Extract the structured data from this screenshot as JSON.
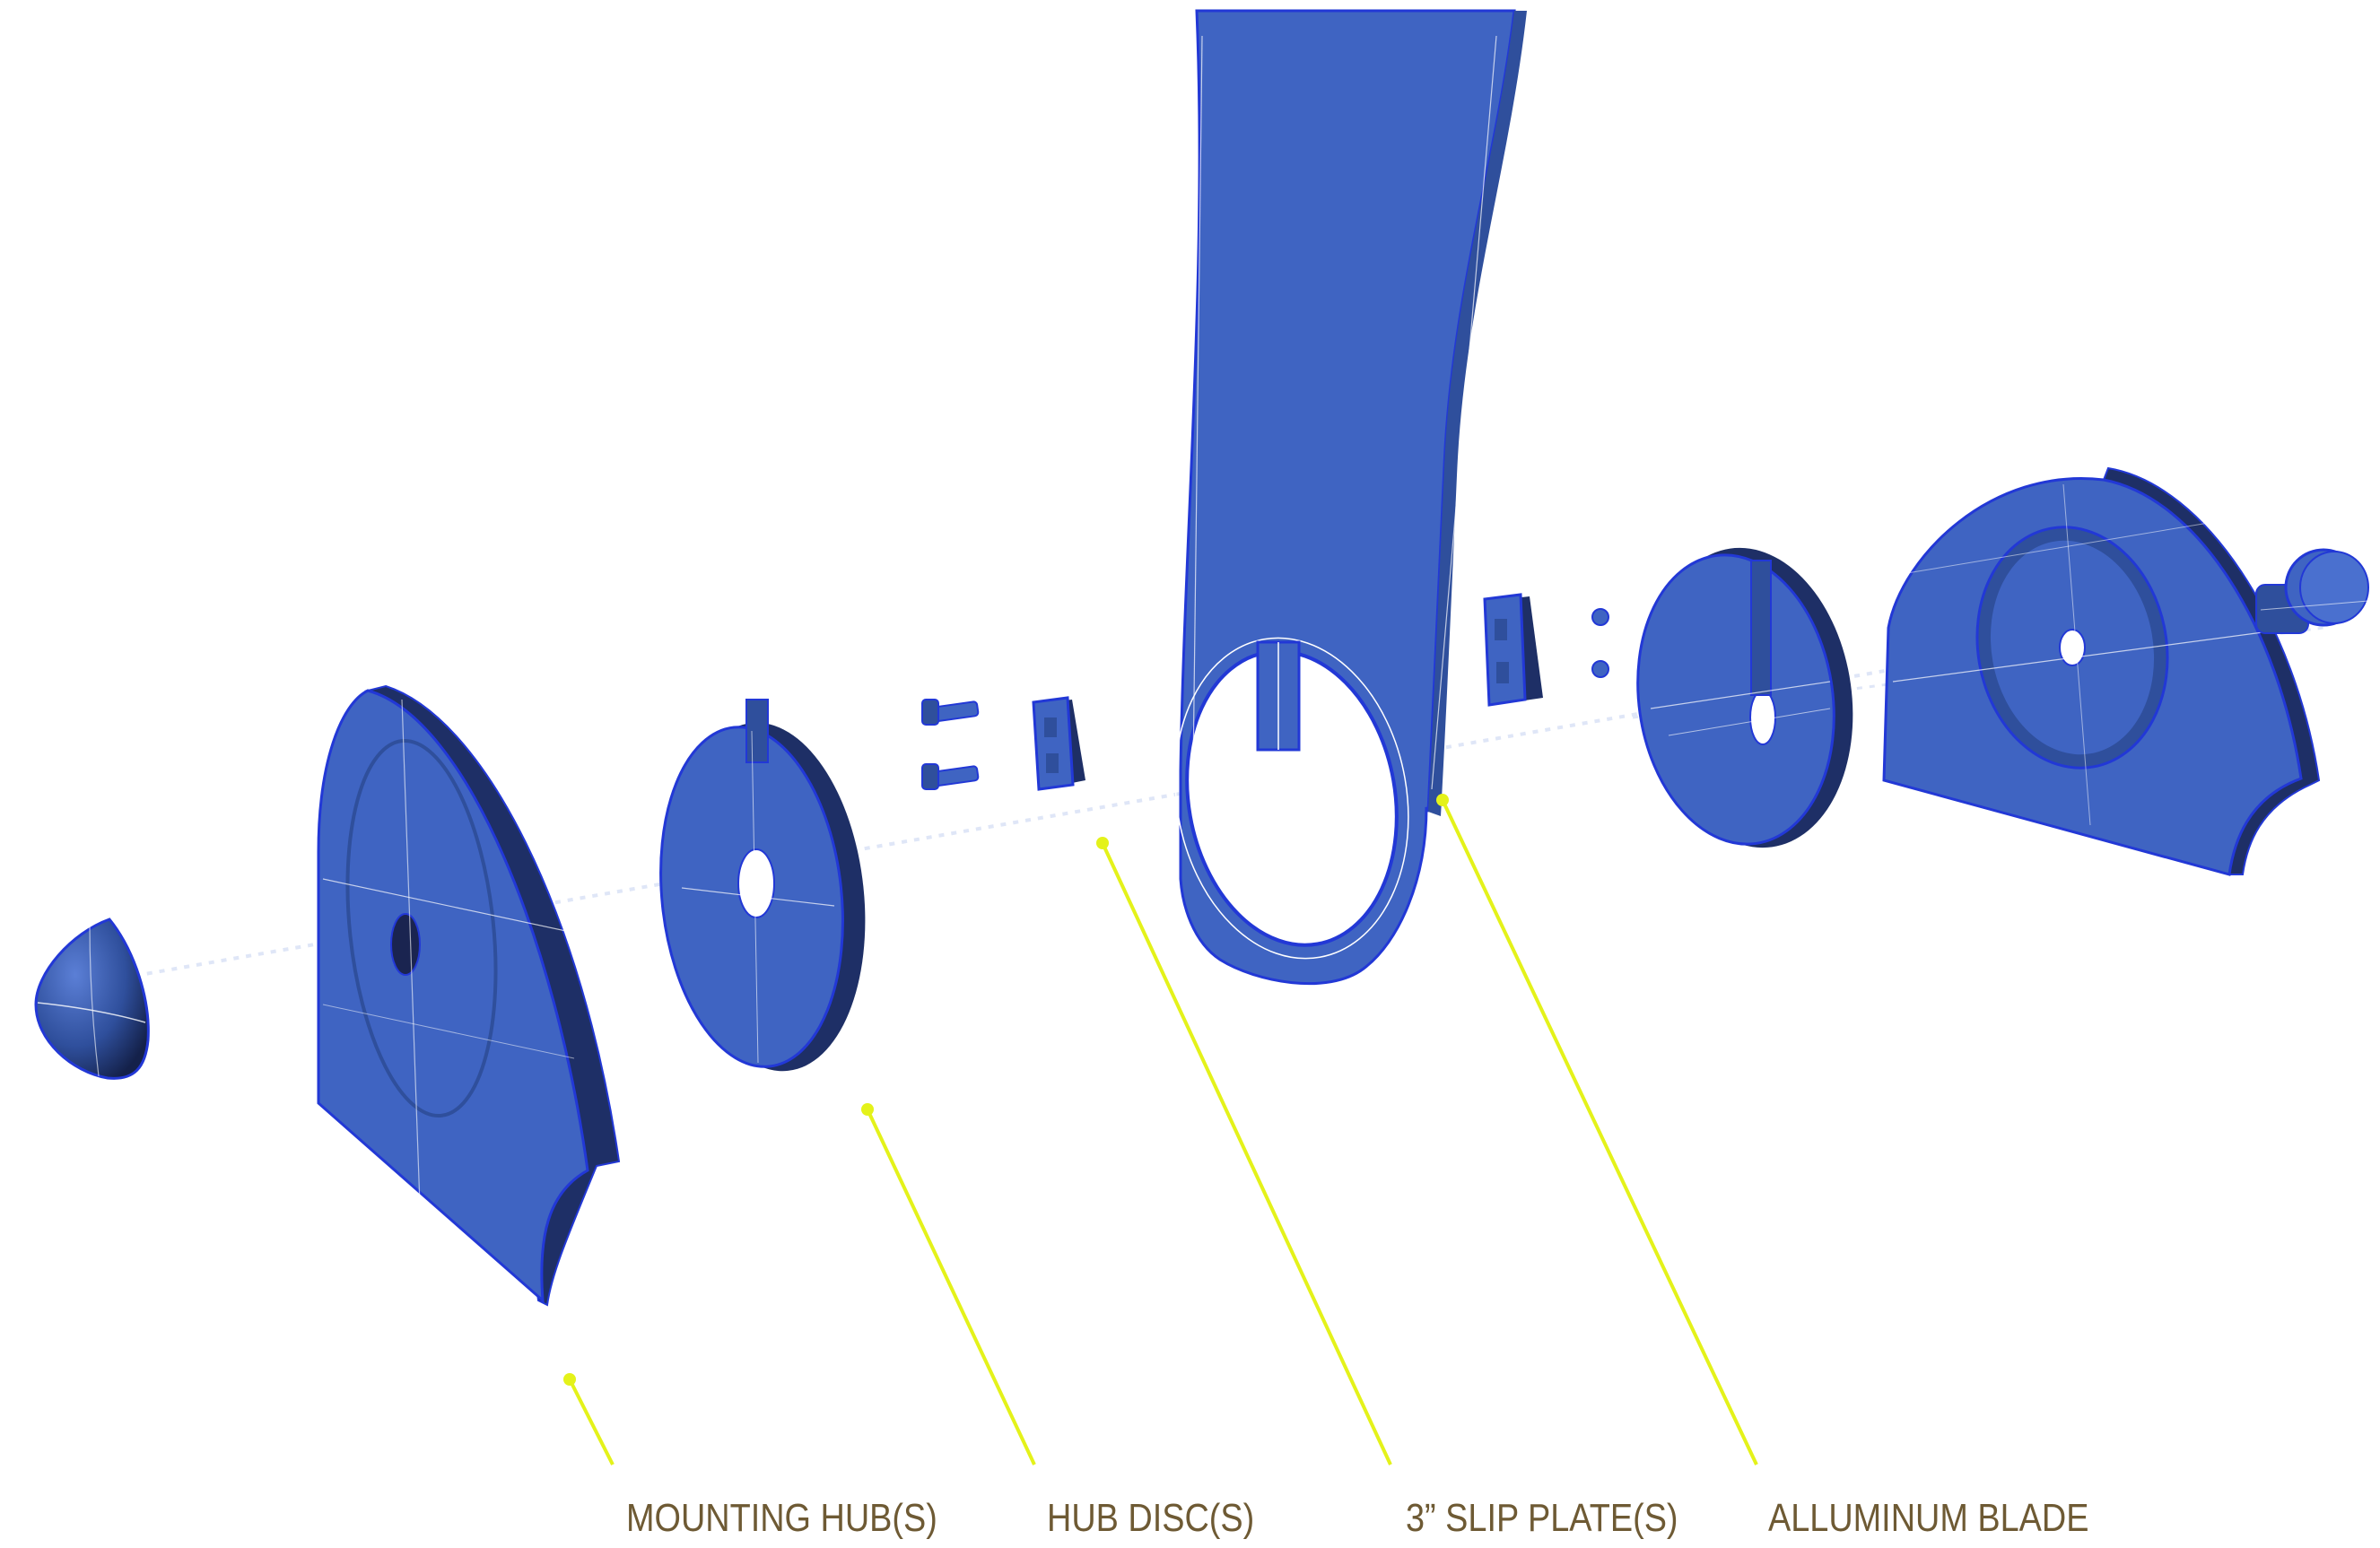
{
  "colors": {
    "part_fill": "#3f64c2",
    "part_fill_dark": "#2f4f9c",
    "part_shadow": "#1e2f66",
    "part_edge": "#2238d6",
    "wire": "#ffffff",
    "axis_dots": "#e8eefc",
    "leader_line": "#e4f21a",
    "label_text": "#6e5a34",
    "background": "#ffffff"
  },
  "components": [
    {
      "id": "end-cap",
      "shape": "hemisphere"
    },
    {
      "id": "mounting-hub-left",
      "shape": "arched-plate"
    },
    {
      "id": "hub-disc-left",
      "shape": "disc"
    },
    {
      "id": "bolts-left",
      "shape": "bolt-pair"
    },
    {
      "id": "slip-plate-left",
      "shape": "small-plate"
    },
    {
      "id": "alluminum-blade",
      "shape": "blade-with-ring"
    },
    {
      "id": "slip-plate-right",
      "shape": "small-plate"
    },
    {
      "id": "nuts-right",
      "shape": "nut-pair"
    },
    {
      "id": "hub-disc-right",
      "shape": "disc"
    },
    {
      "id": "mounting-hub-right",
      "shape": "arched-plate"
    },
    {
      "id": "shaft-bolt",
      "shape": "bolt"
    }
  ],
  "callouts": [
    {
      "id": "mounting-hub",
      "label": "MOUNTING HUB(S)"
    },
    {
      "id": "hub-disc",
      "label": "HUB DISC(S)"
    },
    {
      "id": "slip-plate",
      "label": "3” SLIP PLATE(S)"
    },
    {
      "id": "blade",
      "label": "ALLUMINUM BLADE"
    }
  ]
}
